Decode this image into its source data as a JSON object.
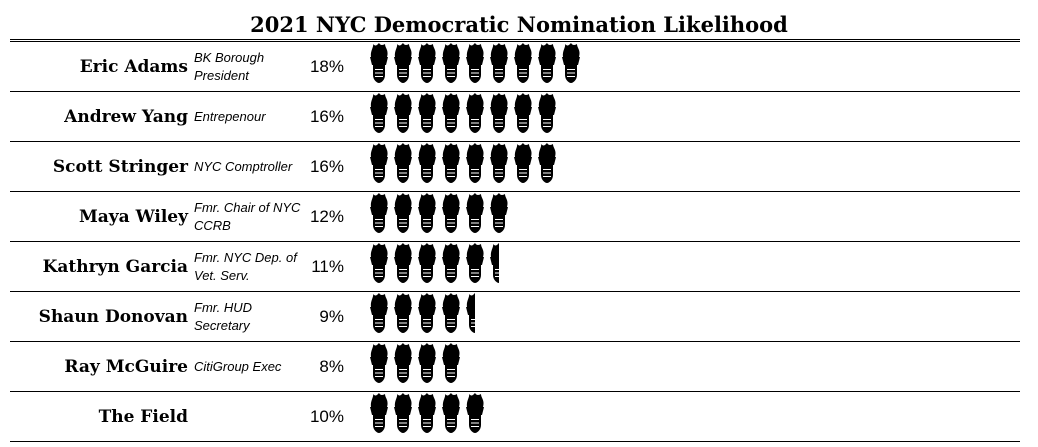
{
  "chart_data": {
    "type": "pictograph",
    "title": "2021 NYC Democratic Nomination Likelihood",
    "icon": "statue-of-liberty-torch-icon",
    "icon_color": "#000000",
    "rows": [
      {
        "name": "Eric Adams",
        "description": "BK Borough President",
        "label": "18%",
        "value": 18
      },
      {
        "name": "Andrew Yang",
        "description": "Entrepenour",
        "label": "16%",
        "value": 16
      },
      {
        "name": "Scott Stringer",
        "description": "NYC Comptroller",
        "label": "16%",
        "value": 16
      },
      {
        "name": "Maya Wiley",
        "description": "Fmr. Chair of NYC CCRB",
        "label": "12%",
        "value": 12
      },
      {
        "name": "Kathryn Garcia",
        "description": "Fmr. NYC Dep. of Vet. Serv.",
        "label": "11%",
        "value": 11
      },
      {
        "name": "Shaun Donovan",
        "description": "Fmr. HUD Secretary",
        "label": "9%",
        "value": 9
      },
      {
        "name": "Ray McGuire",
        "description": "CitiGroup Exec",
        "label": "8%",
        "value": 8
      },
      {
        "name": "The Field",
        "description": "",
        "label": "10%",
        "value": 10
      }
    ],
    "units_per_icon": 2
  }
}
